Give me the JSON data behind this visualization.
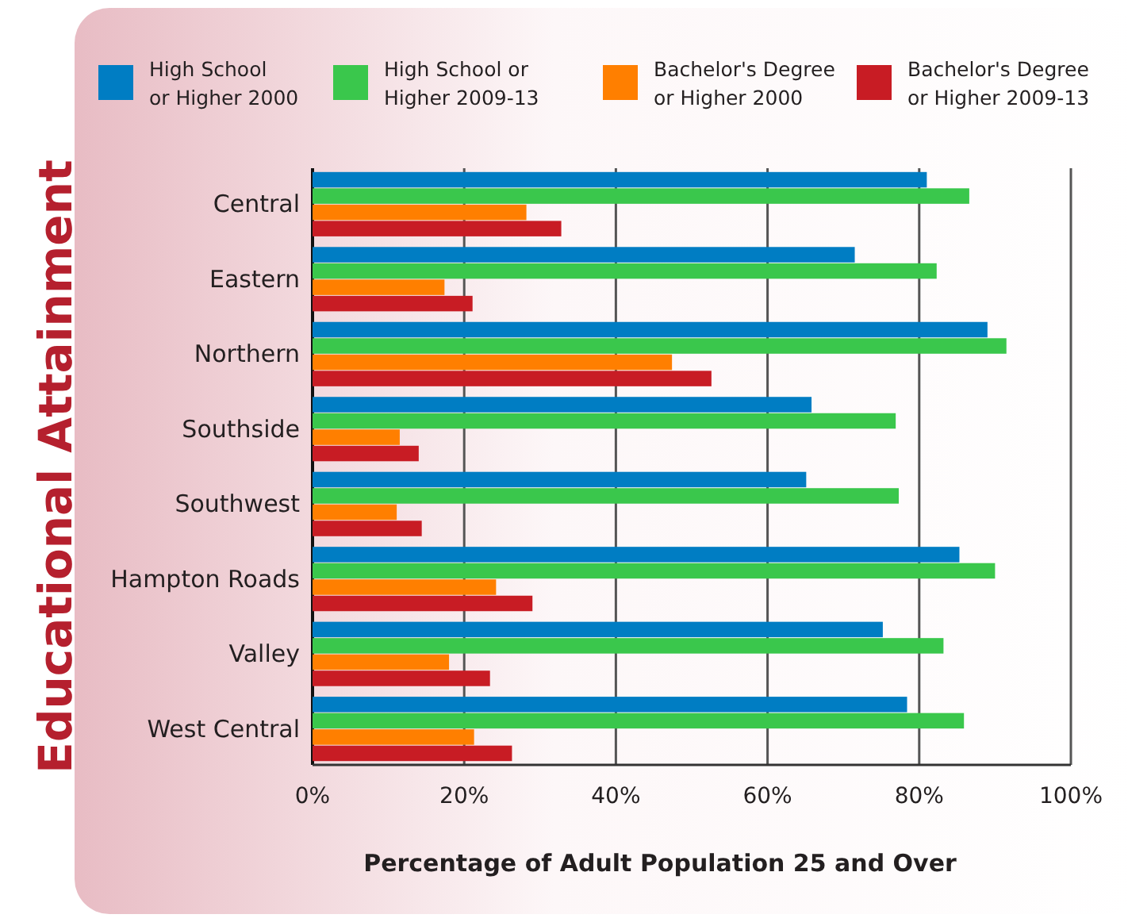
{
  "chart_data": {
    "type": "bar",
    "orientation": "horizontal",
    "xlabel": "Percentage of Adult Population 25 and Over",
    "ylabel": "Educational Attainment",
    "categories": [
      "Central",
      "Eastern",
      "Northern",
      "Southside",
      "Southwest",
      "Hampton Roads",
      "Valley",
      "West Central"
    ],
    "series": [
      {
        "name": "High School\nor Higher 2000",
        "color": "#007dc3",
        "values": [
          81,
          71.5,
          89,
          65.8,
          65.1,
          85.3,
          75.2,
          78.4
        ]
      },
      {
        "name": "High School or\nHigher 2009-13",
        "color": "#3ac74c",
        "values": [
          86.6,
          82.3,
          91.5,
          76.9,
          77.3,
          90,
          83.2,
          85.9
        ]
      },
      {
        "name": "Bachelor's Degree\nor Higher 2000",
        "color": "#ff7f00",
        "values": [
          28.2,
          17.4,
          47.4,
          11.5,
          11.1,
          24.2,
          18,
          21.3
        ]
      },
      {
        "name": "Bachelor's Degree\nor Higher 2009-13",
        "color": "#c81c24",
        "values": [
          32.8,
          21.1,
          52.6,
          14,
          14.4,
          29,
          23.4,
          26.3
        ]
      }
    ],
    "xlim": [
      0,
      100
    ],
    "xticks": [
      {
        "value": 0,
        "label": "0%"
      },
      {
        "value": 20,
        "label": "20%"
      },
      {
        "value": 40,
        "label": "40%"
      },
      {
        "value": 60,
        "label": "60%"
      },
      {
        "value": 80,
        "label": "80%"
      },
      {
        "value": 100,
        "label": "100%"
      }
    ],
    "grid": "x",
    "legend": "top"
  }
}
